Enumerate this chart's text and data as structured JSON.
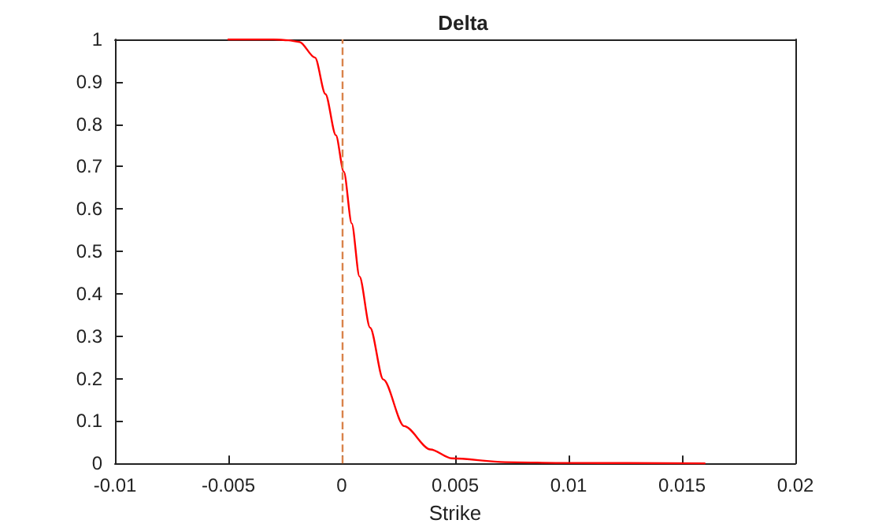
{
  "chart_data": {
    "type": "line",
    "title": "Delta",
    "xlabel": "Strike",
    "series": [
      {
        "color": "#ff0000",
        "x": [
          -0.005,
          -0.003,
          -0.00236,
          -0.00187,
          -0.00118,
          -0.00072,
          -0.00026,
          9e-05,
          0.00044,
          0.00078,
          0.00125,
          0.00183,
          0.00275,
          0.00391,
          0.00484,
          0.0072,
          0.01,
          0.016
        ],
        "values": [
          1,
          1,
          0.998,
          0.994,
          0.957,
          0.871,
          0.774,
          0.688,
          0.566,
          0.441,
          0.32,
          0.198,
          0.088,
          0.033,
          0.012,
          0.003,
          0.001,
          0
        ]
      }
    ],
    "xlim": [
      -0.01,
      0.02
    ],
    "xticks": [
      -0.01,
      -0.005,
      0,
      0.005,
      0.01,
      0.015,
      0.02
    ],
    "ylim": [
      0,
      1
    ],
    "yticks": [
      0,
      0.1,
      0.2,
      0.3,
      0.4,
      0.5,
      0.6,
      0.7,
      0.8,
      0.9,
      1
    ],
    "ref_lines": [
      {
        "axis": "x",
        "value": 0,
        "color": "#d9824a",
        "line_style": "dashed"
      }
    ],
    "grid": false,
    "marker": "none",
    "line_style": "solid"
  }
}
